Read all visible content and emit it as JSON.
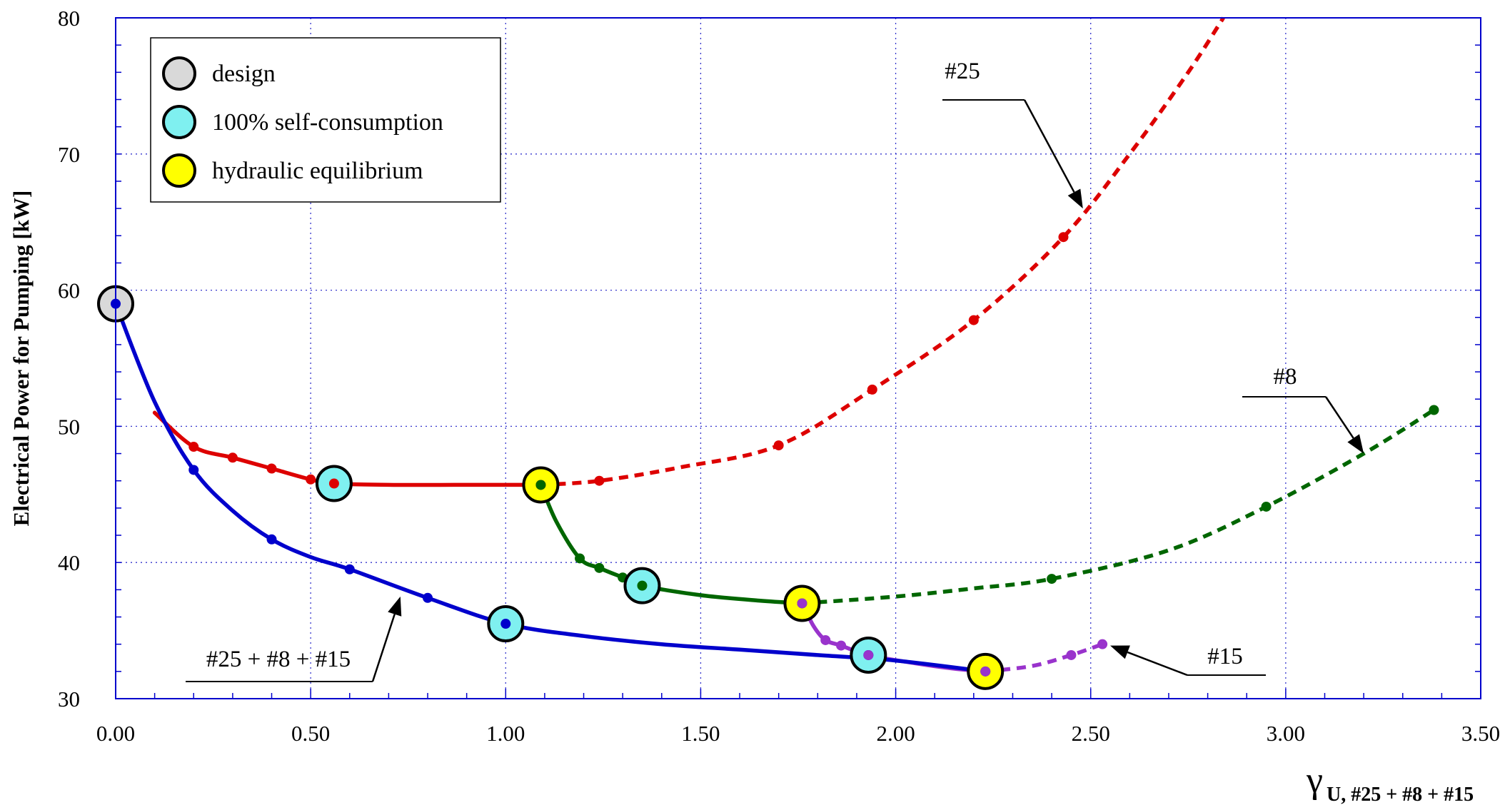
{
  "chart_data": {
    "type": "line",
    "ylabel": "Electrical Power for Pumping [kW]",
    "xlabel_symbol": "γ",
    "xlabel_subscript": "U, #25 + #8 + #15",
    "xlim": [
      0,
      3.5
    ],
    "ylim": [
      30,
      80
    ],
    "xticks": [
      "0.00",
      "0.50",
      "1.00",
      "1.50",
      "2.00",
      "2.50",
      "3.00",
      "3.50"
    ],
    "yticks": [
      "30",
      "40",
      "50",
      "60",
      "70",
      "80"
    ],
    "grid": true,
    "legend_position": "top-left",
    "legend": [
      {
        "label": "design",
        "color": "#d9d9d9"
      },
      {
        "label": "100% self-consumption",
        "color": "#7ff0f0"
      },
      {
        "label": "hydraulic equilibrium",
        "color": "#ffff00"
      }
    ],
    "annotations": [
      {
        "text": "#25",
        "series": "#25",
        "target": [
          2.48,
          66.0
        ]
      },
      {
        "text": "#8",
        "series": "#8",
        "target": [
          3.2,
          48.0
        ]
      },
      {
        "text": "#15",
        "series": "#15",
        "target": [
          2.55,
          33.9
        ]
      },
      {
        "text": "#25 + #8 + #15",
        "series": "#25 + #8 + #15",
        "target": [
          0.73,
          37.5
        ]
      }
    ],
    "series": [
      {
        "name": "#25 + #8 + #15",
        "color": "#0000cc",
        "style": "solid",
        "markers": [
          [
            0.0,
            59.0
          ],
          [
            0.2,
            46.8
          ],
          [
            0.4,
            41.7
          ],
          [
            0.6,
            39.5
          ],
          [
            0.8,
            37.4
          ],
          [
            1.0,
            35.5
          ],
          [
            1.93,
            33.2
          ],
          [
            2.23,
            32.0
          ]
        ],
        "curve": [
          [
            0.0,
            59.0
          ],
          [
            0.1,
            51.8
          ],
          [
            0.2,
            46.8
          ],
          [
            0.3,
            43.8
          ],
          [
            0.4,
            41.7
          ],
          [
            0.5,
            40.4
          ],
          [
            0.6,
            39.5
          ],
          [
            0.8,
            37.4
          ],
          [
            1.0,
            35.5
          ],
          [
            1.2,
            34.6
          ],
          [
            1.4,
            34.0
          ],
          [
            1.6,
            33.6
          ],
          [
            1.8,
            33.2
          ],
          [
            2.0,
            32.8
          ],
          [
            2.23,
            32.0
          ]
        ]
      },
      {
        "name": "#25",
        "color": "#dd0000",
        "style": "solid",
        "markers": [
          [
            0.2,
            48.5
          ],
          [
            0.3,
            47.7
          ],
          [
            0.4,
            46.9
          ],
          [
            0.5,
            46.1
          ],
          [
            0.56,
            45.8
          ],
          [
            1.09,
            45.7
          ]
        ],
        "curve": [
          [
            0.1,
            51.0
          ],
          [
            0.2,
            48.5
          ],
          [
            0.3,
            47.7
          ],
          [
            0.4,
            46.9
          ],
          [
            0.5,
            46.1
          ],
          [
            0.56,
            45.8
          ],
          [
            0.7,
            45.7
          ],
          [
            0.9,
            45.7
          ],
          [
            1.09,
            45.7
          ]
        ]
      },
      {
        "name": "#25",
        "color": "#dd0000",
        "style": "dashed",
        "markers": [
          [
            1.24,
            46.0
          ],
          [
            1.7,
            48.6
          ],
          [
            1.94,
            52.7
          ],
          [
            2.2,
            57.8
          ],
          [
            2.43,
            63.9
          ]
        ],
        "curve": [
          [
            1.09,
            45.7
          ],
          [
            1.24,
            46.0
          ],
          [
            1.45,
            47.0
          ],
          [
            1.7,
            48.6
          ],
          [
            1.94,
            52.7
          ],
          [
            2.2,
            57.8
          ],
          [
            2.43,
            63.9
          ],
          [
            2.6,
            70.0
          ],
          [
            2.75,
            76.0
          ],
          [
            2.84,
            80.0
          ]
        ]
      },
      {
        "name": "#8",
        "color": "#006600",
        "style": "solid",
        "markers": [
          [
            1.09,
            45.7
          ],
          [
            1.19,
            40.3
          ],
          [
            1.24,
            39.6
          ],
          [
            1.3,
            38.9
          ],
          [
            1.35,
            38.3
          ],
          [
            1.76,
            37.0
          ]
        ],
        "curve": [
          [
            1.09,
            45.7
          ],
          [
            1.13,
            43.0
          ],
          [
            1.19,
            40.3
          ],
          [
            1.24,
            39.6
          ],
          [
            1.3,
            38.9
          ],
          [
            1.35,
            38.3
          ],
          [
            1.5,
            37.6
          ],
          [
            1.65,
            37.2
          ],
          [
            1.76,
            37.0
          ]
        ]
      },
      {
        "name": "#8",
        "color": "#006600",
        "style": "dashed",
        "markers": [
          [
            2.4,
            38.8
          ],
          [
            2.95,
            44.1
          ],
          [
            3.38,
            51.2
          ]
        ],
        "curve": [
          [
            1.76,
            37.0
          ],
          [
            2.0,
            37.5
          ],
          [
            2.2,
            38.1
          ],
          [
            2.4,
            38.8
          ],
          [
            2.7,
            40.9
          ],
          [
            2.95,
            44.1
          ],
          [
            3.2,
            48.0
          ],
          [
            3.38,
            51.2
          ]
        ]
      },
      {
        "name": "#15",
        "color": "#9933cc",
        "style": "solid",
        "markers": [
          [
            1.76,
            37.0
          ],
          [
            1.82,
            34.3
          ],
          [
            1.86,
            33.9
          ],
          [
            1.93,
            33.2
          ],
          [
            2.23,
            32.0
          ]
        ],
        "curve": [
          [
            1.76,
            37.0
          ],
          [
            1.79,
            35.3
          ],
          [
            1.82,
            34.3
          ],
          [
            1.86,
            33.9
          ],
          [
            1.93,
            33.2
          ],
          [
            2.05,
            32.6
          ],
          [
            2.15,
            32.2
          ],
          [
            2.23,
            32.0
          ]
        ]
      },
      {
        "name": "#15",
        "color": "#9933cc",
        "style": "dashed",
        "markers": [
          [
            2.45,
            33.2
          ],
          [
            2.53,
            34.0
          ]
        ],
        "curve": [
          [
            2.23,
            32.0
          ],
          [
            2.35,
            32.4
          ],
          [
            2.45,
            33.2
          ],
          [
            2.53,
            34.0
          ]
        ]
      }
    ],
    "state_points": [
      {
        "label": "design",
        "fill": "#d9d9d9",
        "points": [
          [
            0.0,
            59.0
          ]
        ]
      },
      {
        "label": "100% self-consumption",
        "fill": "#7ff0f0",
        "points": [
          [
            0.56,
            45.8
          ],
          [
            1.0,
            35.5
          ],
          [
            1.35,
            38.3
          ],
          [
            1.93,
            33.2
          ]
        ]
      },
      {
        "label": "hydraulic equilibrium",
        "fill": "#ffff00",
        "points": [
          [
            1.09,
            45.7
          ],
          [
            1.76,
            37.0
          ],
          [
            2.23,
            32.0
          ]
        ]
      }
    ]
  }
}
